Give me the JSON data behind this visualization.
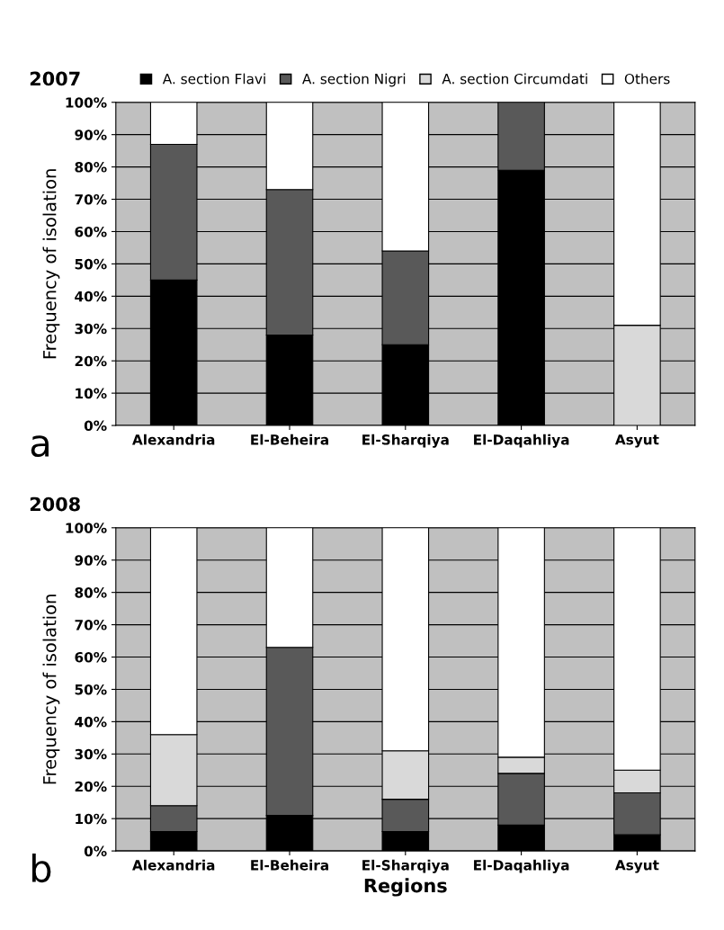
{
  "chart_data": [
    {
      "type": "bar",
      "stacked": true,
      "title": "2007",
      "ylabel": "Frequency of isolation",
      "annotations": [
        "a"
      ],
      "categories": [
        "Alexandria",
        "El-Beheira",
        "El-Sharqiya",
        "El-Daqahliya",
        "Asyut"
      ],
      "series": [
        {
          "name": "A. section Flavi",
          "color": "#000000",
          "values": [
            45,
            28,
            25,
            79,
            0
          ]
        },
        {
          "name": "A. section Nigri",
          "color": "#595959",
          "values": [
            42,
            45,
            29,
            21,
            0
          ]
        },
        {
          "name": "A. section Circumdati",
          "color": "#d9d9d9",
          "values": [
            0,
            0,
            0,
            0,
            31
          ]
        },
        {
          "name": "Others",
          "color": "#ffffff",
          "values": [
            13,
            27,
            46,
            0,
            69
          ]
        }
      ],
      "ylim": [
        0,
        100
      ],
      "yticks": [
        {
          "value": 0,
          "label": "0%"
        },
        {
          "value": 10,
          "label": "10%"
        },
        {
          "value": 20,
          "label": "20%"
        },
        {
          "value": 30,
          "label": "30%"
        },
        {
          "value": 40,
          "label": "40%"
        },
        {
          "value": 50,
          "label": "50%"
        },
        {
          "value": 60,
          "label": "60%"
        },
        {
          "value": 70,
          "label": "70%"
        },
        {
          "value": 80,
          "label": "80%"
        },
        {
          "value": 90,
          "label": "90%"
        },
        {
          "value": 100,
          "label": "100%"
        }
      ],
      "grid": "y",
      "legend": "top"
    },
    {
      "type": "bar",
      "stacked": true,
      "title": "2008",
      "ylabel": "Frequency of isolation",
      "xlabel": "Regions",
      "annotations": [
        "b"
      ],
      "categories": [
        "Alexandria",
        "El-Beheira",
        "El-Sharqiya",
        "El-Daqahliya",
        "Asyut"
      ],
      "series": [
        {
          "color": "#000000",
          "values": [
            6,
            11,
            6,
            8,
            5
          ]
        },
        {
          "color": "#595959",
          "values": [
            8,
            52,
            10,
            16,
            13
          ]
        },
        {
          "color": "#d9d9d9",
          "values": [
            22,
            0,
            15,
            5,
            7
          ]
        },
        {
          "color": "#ffffff",
          "values": [
            64,
            37,
            69,
            71,
            75
          ]
        }
      ],
      "ylim": [
        0,
        100
      ],
      "yticks": [
        {
          "value": 0,
          "label": "0%"
        },
        {
          "value": 10,
          "label": "10%"
        },
        {
          "value": 20,
          "label": "20%"
        },
        {
          "value": 30,
          "label": "30%"
        },
        {
          "value": 40,
          "label": "40%"
        },
        {
          "value": 50,
          "label": "50%"
        },
        {
          "value": 60,
          "label": "60%"
        },
        {
          "value": 70,
          "label": "70%"
        },
        {
          "value": 80,
          "label": "80%"
        },
        {
          "value": 90,
          "label": "90%"
        },
        {
          "value": 100,
          "label": "100%"
        }
      ],
      "grid": "y",
      "legend": false
    }
  ]
}
